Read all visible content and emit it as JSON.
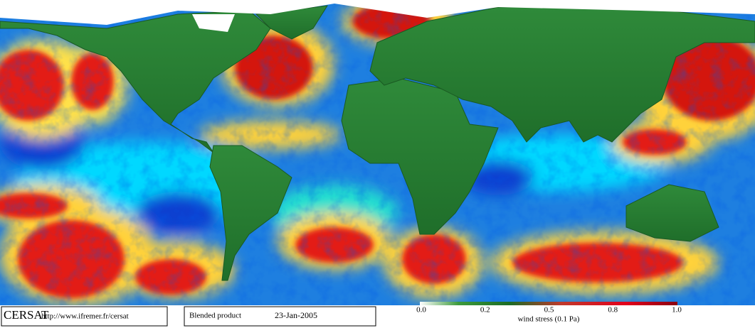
{
  "logo": "CERSAT",
  "url": "http://www.ifremer.fr/cersat",
  "product": "Blended product",
  "date": "23-Jan-2005",
  "colorbar": {
    "ticks": [
      "0.0",
      "0.2",
      "0.5",
      "0.8",
      "1.0"
    ],
    "label": "wind stress (0.1 Pa)"
  }
}
